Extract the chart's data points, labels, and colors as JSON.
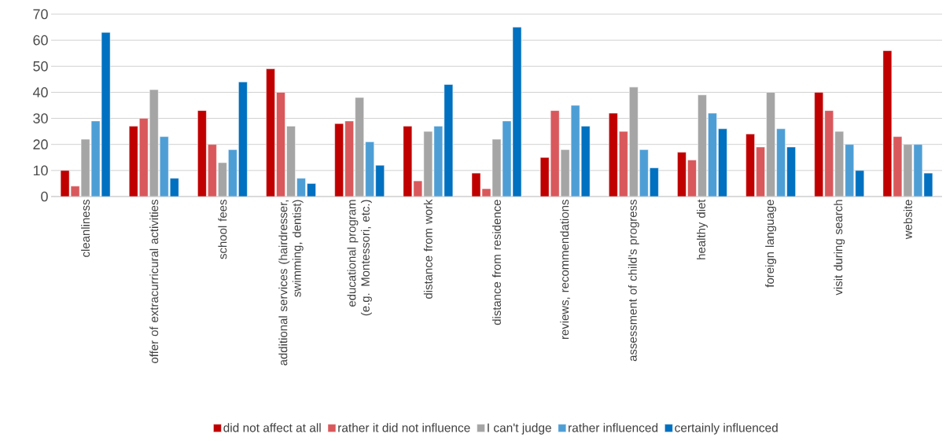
{
  "chart_data": {
    "type": "bar",
    "categories": [
      "cleanliness",
      "offer of extracurricural activities",
      "school fees",
      "additional services (hairdresser, swimming, dentist)",
      "educational program (e.g. Montessori, etc.)",
      "distance from work",
      "distance from residence",
      "reviews, recommendations",
      "assessment of child's progress",
      "healthy diet",
      "foreign language",
      "visit during search",
      "website"
    ],
    "series": [
      {
        "name": "did not affect at all",
        "color": "#c00000",
        "values": [
          10,
          27,
          33,
          49,
          28,
          27,
          9,
          15,
          32,
          17,
          24,
          40,
          56
        ]
      },
      {
        "name": "rather it did not influence",
        "color": "#d9585b",
        "values": [
          4,
          30,
          20,
          40,
          29,
          6,
          3,
          33,
          25,
          14,
          19,
          33,
          23
        ]
      },
      {
        "name": "I can't judge",
        "color": "#a5a5a5",
        "values": [
          22,
          41,
          13,
          27,
          38,
          25,
          22,
          18,
          42,
          39,
          40,
          25,
          20
        ]
      },
      {
        "name": "rather influenced",
        "color": "#4e9ed6",
        "values": [
          29,
          23,
          18,
          7,
          21,
          27,
          29,
          35,
          18,
          32,
          26,
          20,
          20
        ]
      },
      {
        "name": "certainly influenced",
        "color": "#0070c0",
        "values": [
          63,
          7,
          44,
          5,
          12,
          43,
          65,
          27,
          11,
          26,
          19,
          10,
          9
        ]
      }
    ],
    "ylim": [
      0,
      70
    ],
    "yticks": [
      0,
      10,
      20,
      30,
      40,
      50,
      60,
      70
    ],
    "grid": "y",
    "legend": "bottom"
  }
}
